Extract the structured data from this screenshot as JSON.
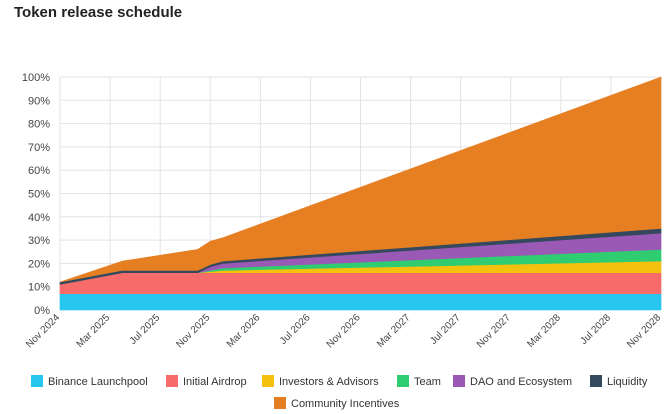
{
  "page": {
    "title": "Token release schedule"
  },
  "chart_data": {
    "type": "area",
    "stacked": true,
    "title": "Token release schedule",
    "xlabel": "",
    "ylabel": "",
    "ylim": [
      0,
      100
    ],
    "y_ticks": [
      "0%",
      "10%",
      "20%",
      "30%",
      "40%",
      "50%",
      "60%",
      "70%",
      "80%",
      "90%",
      "100%"
    ],
    "x_range_months": [
      0,
      48
    ],
    "x_ticks": [
      {
        "month": 0,
        "label": "Nov 2024"
      },
      {
        "month": 4,
        "label": "Mar 2025"
      },
      {
        "month": 8,
        "label": "Jul 2025"
      },
      {
        "month": 12,
        "label": "Nov 2025"
      },
      {
        "month": 16,
        "label": "Mar 2026"
      },
      {
        "month": 20,
        "label": "Jul 2026"
      },
      {
        "month": 24,
        "label": "Nov 2026"
      },
      {
        "month": 28,
        "label": "Mar 2027"
      },
      {
        "month": 32,
        "label": "Jul 2027"
      },
      {
        "month": 36,
        "label": "Nov 2027"
      },
      {
        "month": 40,
        "label": "Mar 2028"
      },
      {
        "month": 44,
        "label": "Jul 2028"
      },
      {
        "month": 48,
        "label": "Nov 2028"
      }
    ],
    "grid": true,
    "legend_position": "bottom",
    "x_months": [
      0,
      5,
      11,
      12,
      13,
      48
    ],
    "series": [
      {
        "name": "Binance Launchpool",
        "color": "#26c6ef",
        "values": [
          7,
          7,
          7,
          7,
          7,
          7
        ]
      },
      {
        "name": "Initial Airdrop",
        "color": "#f76b6b",
        "values": [
          4,
          9,
          9,
          9,
          9,
          9
        ]
      },
      {
        "name": "Investors & Advisors",
        "color": "#f5c10f",
        "values": [
          0,
          0,
          0,
          0.5,
          1,
          5
        ]
      },
      {
        "name": "Team",
        "color": "#2fcc71",
        "values": [
          0,
          0,
          0,
          0.5,
          1,
          5
        ]
      },
      {
        "name": "DAO and Ecosystem",
        "color": "#9b59b6",
        "values": [
          0,
          0,
          0,
          1.5,
          2,
          7
        ]
      },
      {
        "name": "Liquidity",
        "color": "#34495e",
        "values": [
          1,
          1,
          1,
          1,
          1,
          2
        ]
      },
      {
        "name": "Community Incentives",
        "color": "#e67e22",
        "values": [
          0,
          4,
          9,
          10,
          10,
          65
        ]
      }
    ]
  }
}
